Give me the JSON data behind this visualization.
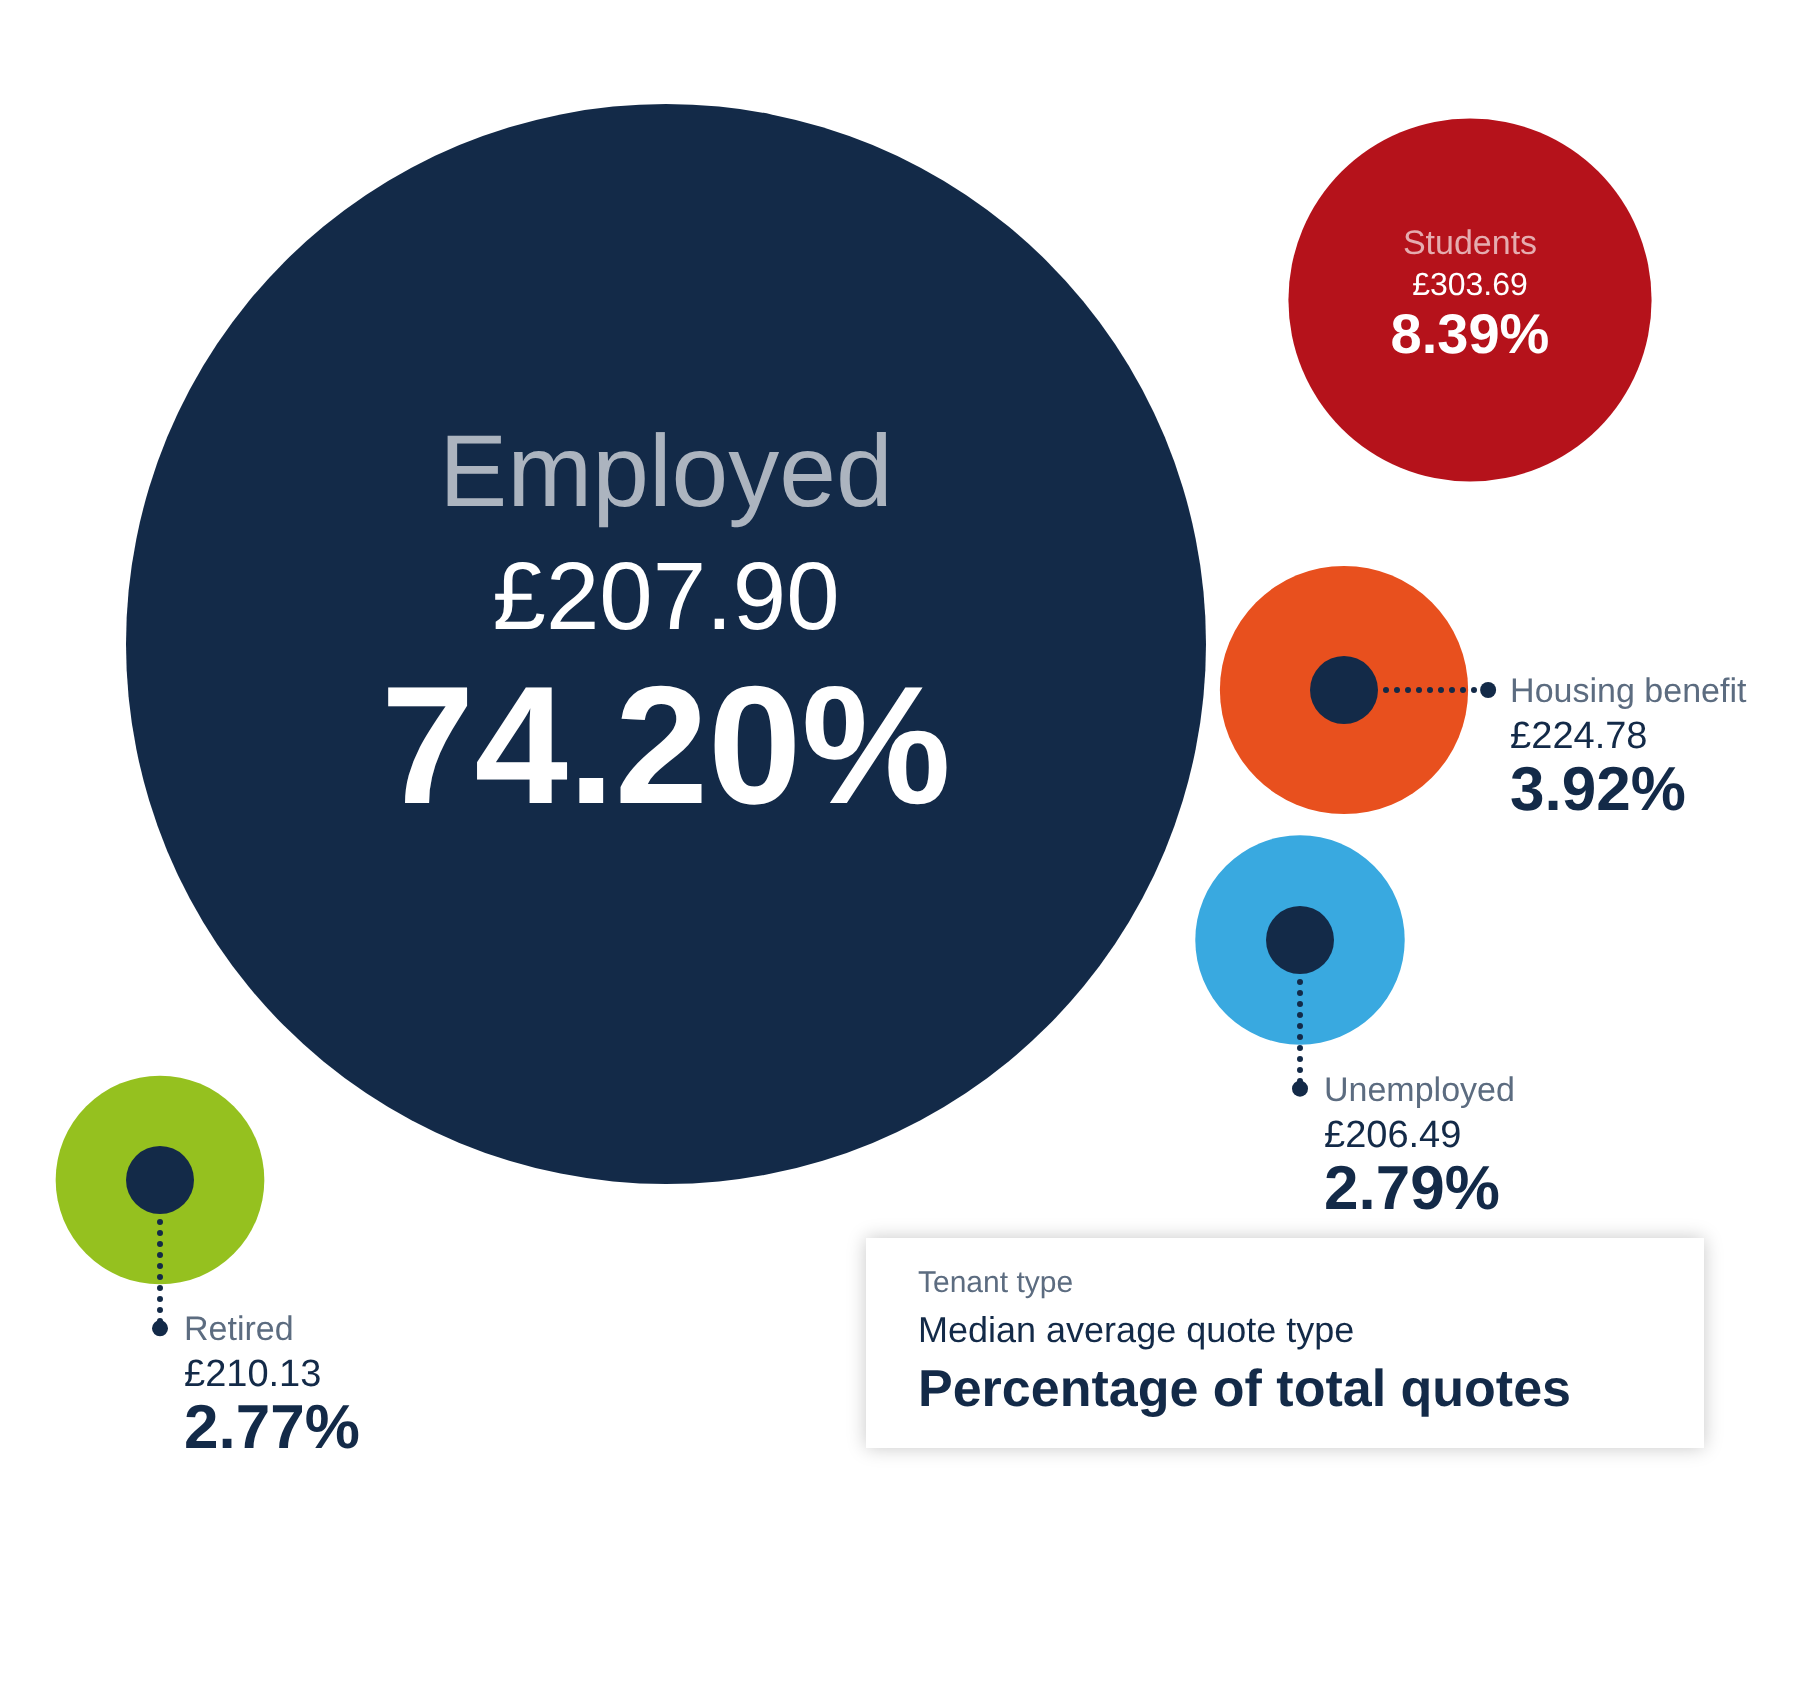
{
  "chart_data": {
    "type": "other",
    "categories": [
      "Employed",
      "Students",
      "Housing benefit",
      "Unemployed",
      "Retired"
    ],
    "series": [
      {
        "name": "Percentage of total quotes",
        "colors": [
          "#132a48",
          "#b5121b",
          "#e8501e",
          "#39a9e0",
          "#95c11f"
        ],
        "values": [
          74.2,
          8.39,
          3.92,
          2.79,
          2.77
        ],
        "value_labels": [
          "74.20%",
          "8.39%",
          "3.92%",
          "2.79%",
          "2.77%"
        ]
      },
      {
        "name": "Median average quote type",
        "values": [
          207.9,
          303.69,
          224.78,
          206.49,
          210.13
        ],
        "value_labels": [
          "£207.90",
          "£303.69",
          "£224.78",
          "£206.49",
          "£210.13"
        ]
      }
    ],
    "legend_title": "Tenant type",
    "legend": "bottom right"
  }
}
